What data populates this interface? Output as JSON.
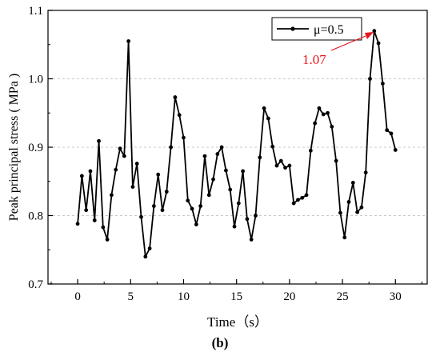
{
  "chart_data": {
    "type": "line",
    "xlabel": "Time（s）",
    "ylabel": "Peak principal stress ( MPa )",
    "caption": "(b)",
    "xlim": [
      -2.8,
      33
    ],
    "ylim": [
      0.7,
      1.1
    ],
    "xticks": [
      "0",
      "5",
      "10",
      "15",
      "20",
      "25",
      "30"
    ],
    "yticks": [
      "0.7",
      "0.8",
      "0.9",
      "1.0",
      "1.1"
    ],
    "grid": "horizontal dashed",
    "legend_position": "top-right",
    "series": [
      {
        "name": "μ=0.5",
        "color": "#000000",
        "x": [
          0.0,
          0.4,
          0.8,
          1.2,
          1.6,
          2.0,
          2.4,
          2.8,
          3.2,
          3.6,
          4.0,
          4.4,
          4.8,
          5.2,
          5.6,
          6.0,
          6.4,
          6.8,
          7.2,
          7.6,
          8.0,
          8.4,
          8.8,
          9.2,
          9.6,
          10.0,
          10.4,
          10.8,
          11.2,
          11.6,
          12.0,
          12.4,
          12.8,
          13.2,
          13.6,
          14.0,
          14.4,
          14.8,
          15.2,
          15.6,
          16.0,
          16.4,
          16.8,
          17.2,
          17.6,
          18.0,
          18.4,
          18.8,
          19.2,
          19.6,
          20.0,
          20.4,
          20.8,
          21.2,
          21.6,
          22.0,
          22.4,
          22.8,
          23.2,
          23.6,
          24.0,
          24.4,
          24.8,
          25.2,
          25.6,
          26.0,
          26.4,
          26.8,
          27.2,
          27.6,
          28.0,
          28.4,
          28.8,
          29.2,
          29.6,
          30.0
        ],
        "y": [
          0.788,
          0.858,
          0.808,
          0.865,
          0.793,
          0.909,
          0.783,
          0.765,
          0.83,
          0.867,
          0.898,
          0.887,
          1.055,
          0.842,
          0.876,
          0.798,
          0.74,
          0.752,
          0.814,
          0.86,
          0.808,
          0.835,
          0.9,
          0.973,
          0.947,
          0.914,
          0.822,
          0.81,
          0.787,
          0.814,
          0.887,
          0.83,
          0.853,
          0.89,
          0.9,
          0.866,
          0.838,
          0.784,
          0.818,
          0.865,
          0.795,
          0.765,
          0.8,
          0.885,
          0.957,
          0.942,
          0.901,
          0.873,
          0.88,
          0.87,
          0.873,
          0.818,
          0.823,
          0.826,
          0.83,
          0.895,
          0.935,
          0.957,
          0.948,
          0.95,
          0.93,
          0.88,
          0.804,
          0.768,
          0.82,
          0.848,
          0.805,
          0.812,
          0.863,
          1.0,
          1.07,
          1.052,
          0.993,
          0.925,
          0.92,
          0.896
        ]
      }
    ],
    "annotations": [
      {
        "text": "1.07",
        "color": "#e8141e",
        "x": 28.0,
        "y": 1.07
      }
    ]
  }
}
